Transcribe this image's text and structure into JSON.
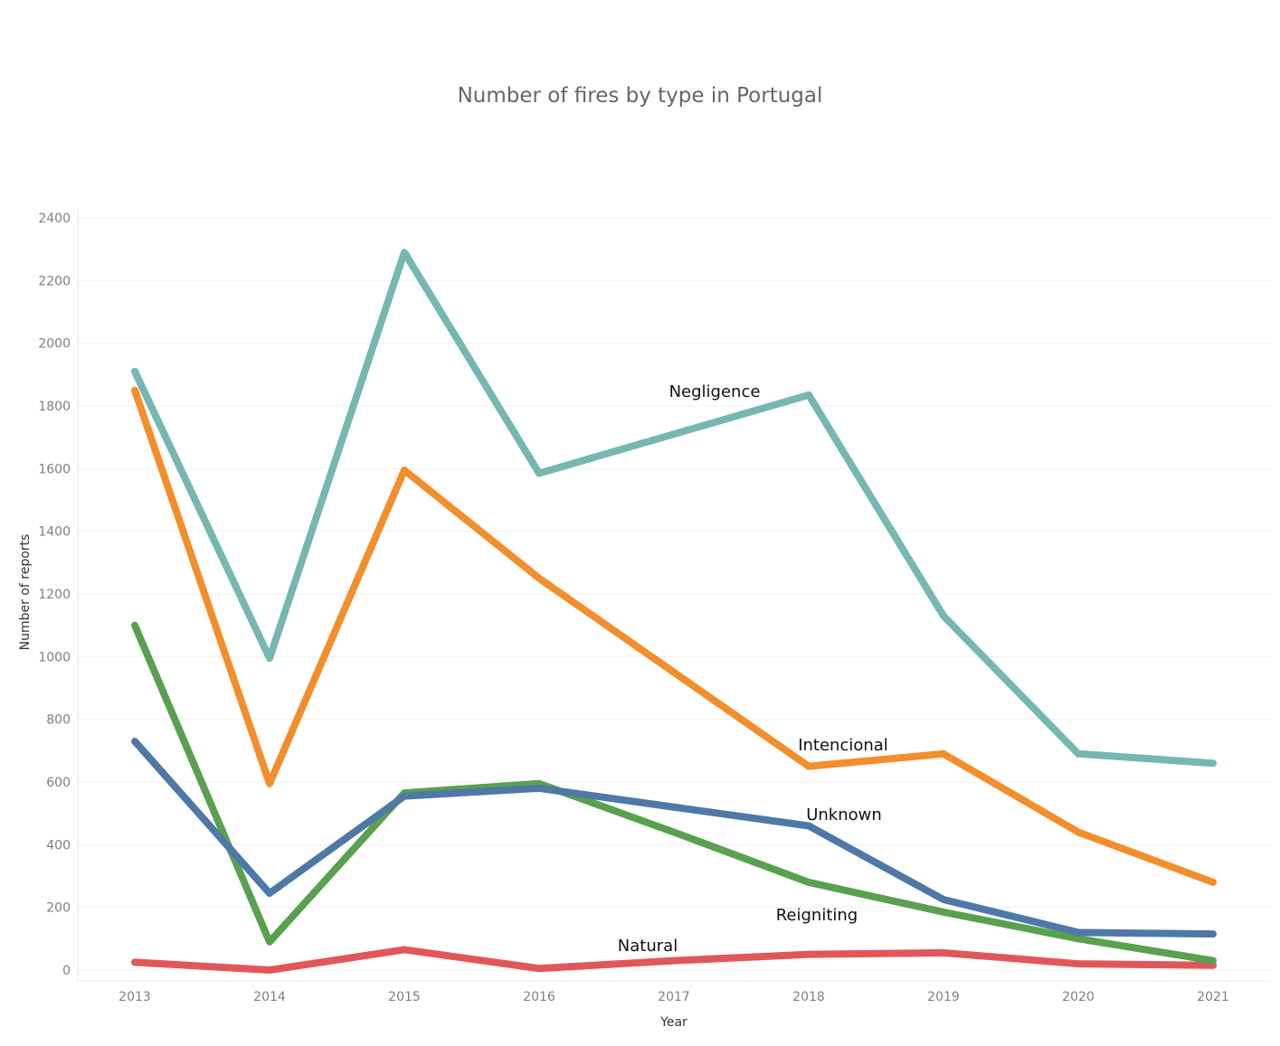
{
  "chart_data": {
    "type": "line",
    "title": "Number of fires by type in Portugal",
    "xlabel": "Year",
    "ylabel": "Number of reports",
    "ylim": [
      0,
      2400
    ],
    "yticks": [
      0,
      200,
      400,
      600,
      800,
      1000,
      1200,
      1400,
      1600,
      1800,
      2000,
      2200,
      2400
    ],
    "x": [
      "2013",
      "2014",
      "2015",
      "2016",
      "2017",
      "2018",
      "2019",
      "2020",
      "2021"
    ],
    "grid": true,
    "legend": "none",
    "series": [
      {
        "name": "Negligence",
        "color": "#76b7b2",
        "values": [
          1910,
          995,
          2290,
          1585,
          1710,
          1835,
          1130,
          690,
          660
        ]
      },
      {
        "name": "Intencional",
        "color": "#f28e2b",
        "values": [
          1850,
          595,
          1595,
          1250,
          950,
          650,
          690,
          440,
          280
        ]
      },
      {
        "name": "Unknown",
        "color": "#4e79a7",
        "values": [
          730,
          245,
          555,
          580,
          520,
          460,
          225,
          120,
          115
        ]
      },
      {
        "name": "Reigniting",
        "color": "#59a14f",
        "values": [
          1100,
          90,
          565,
          595,
          440,
          280,
          185,
          100,
          30
        ]
      },
      {
        "name": "Natural",
        "color": "#e15759",
        "values": [
          25,
          0,
          65,
          5,
          30,
          50,
          55,
          20,
          15
        ]
      }
    ]
  }
}
